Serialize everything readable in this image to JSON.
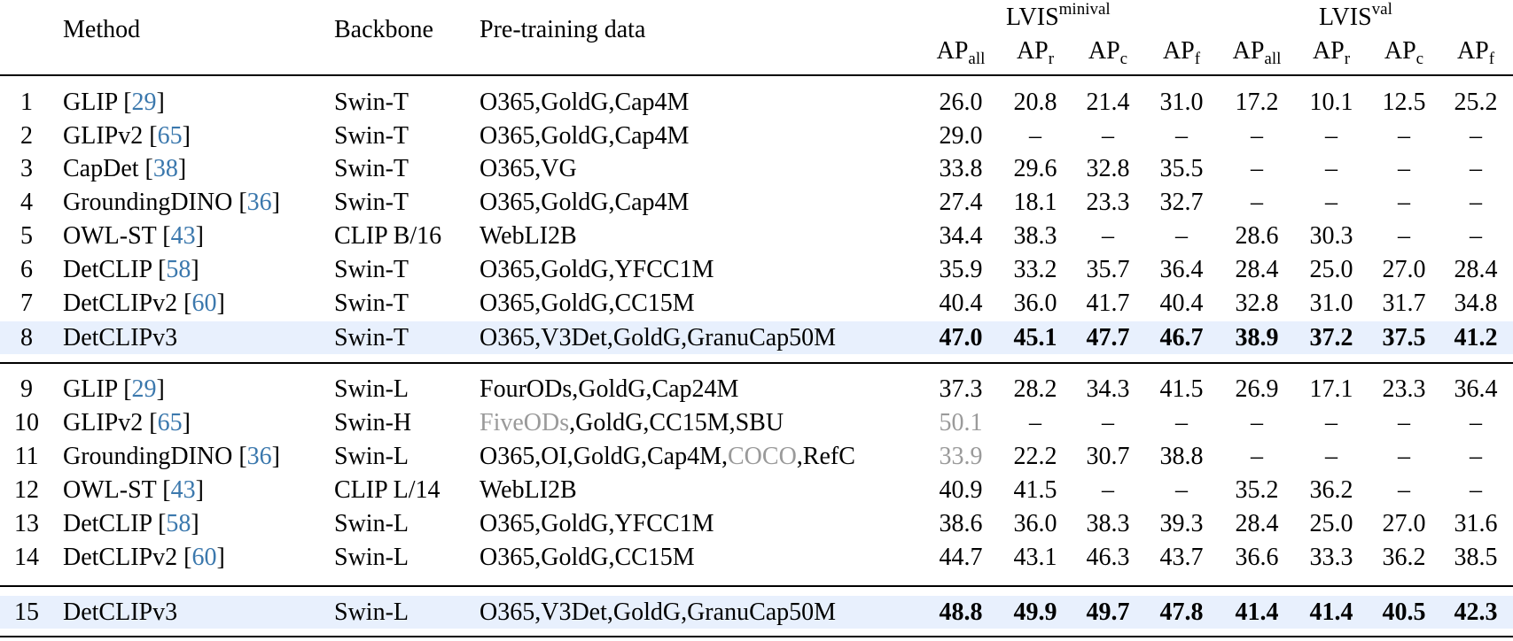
{
  "header": {
    "method": "Method",
    "backbone": "Backbone",
    "pretraining": "Pre-training data",
    "groups": [
      {
        "base": "LVIS",
        "sup": "minival"
      },
      {
        "base": "LVIS",
        "sup": "val"
      }
    ],
    "metrics": [
      {
        "base": "AP",
        "sub": "all"
      },
      {
        "base": "AP",
        "sub": "r"
      },
      {
        "base": "AP",
        "sub": "c"
      },
      {
        "base": "AP",
        "sub": "f"
      },
      {
        "base": "AP",
        "sub": "all"
      },
      {
        "base": "AP",
        "sub": "r"
      },
      {
        "base": "AP",
        "sub": "c"
      },
      {
        "base": "AP",
        "sub": "f"
      }
    ]
  },
  "rows": [
    {
      "num": "1",
      "method": "GLIP",
      "cite": "29",
      "backbone": "Swin-T",
      "data": [
        {
          "t": "O365,GoldG,Cap4M"
        }
      ],
      "values": [
        "26.0",
        "20.8",
        "21.4",
        "31.0",
        "17.2",
        "10.1",
        "12.5",
        "25.2"
      ]
    },
    {
      "num": "2",
      "method": "GLIPv2",
      "cite": "65",
      "backbone": "Swin-T",
      "data": [
        {
          "t": "O365,GoldG,Cap4M"
        }
      ],
      "values": [
        "29.0",
        "–",
        "–",
        "–",
        "–",
        "–",
        "–",
        "–"
      ]
    },
    {
      "num": "3",
      "method": "CapDet",
      "cite": "38",
      "backbone": "Swin-T",
      "data": [
        {
          "t": "O365,VG"
        }
      ],
      "values": [
        "33.8",
        "29.6",
        "32.8",
        "35.5",
        "–",
        "–",
        "–",
        "–"
      ]
    },
    {
      "num": "4",
      "method": "GroundingDINO",
      "cite": "36",
      "backbone": "Swin-T",
      "data": [
        {
          "t": "O365,GoldG,Cap4M"
        }
      ],
      "values": [
        "27.4",
        "18.1",
        "23.3",
        "32.7",
        "–",
        "–",
        "–",
        "–"
      ]
    },
    {
      "num": "5",
      "method": "OWL-ST",
      "cite": "43",
      "backbone": "CLIP B/16",
      "data": [
        {
          "t": "WebLI2B"
        }
      ],
      "values": [
        "34.4",
        "38.3",
        "–",
        "–",
        "28.6",
        "30.3",
        "–",
        "–"
      ]
    },
    {
      "num": "6",
      "method": "DetCLIP",
      "cite": "58",
      "backbone": "Swin-T",
      "data": [
        {
          "t": "O365,GoldG,YFCC1M"
        }
      ],
      "values": [
        "35.9",
        "33.2",
        "35.7",
        "36.4",
        "28.4",
        "25.0",
        "27.0",
        "28.4"
      ]
    },
    {
      "num": "7",
      "method": "DetCLIPv2",
      "cite": "60",
      "backbone": "Swin-T",
      "data": [
        {
          "t": "O365,GoldG,CC15M"
        }
      ],
      "values": [
        "40.4",
        "36.0",
        "41.7",
        "40.4",
        "32.8",
        "31.0",
        "31.7",
        "34.8"
      ]
    },
    {
      "num": "8",
      "method": "DetCLIPv3",
      "cite": "",
      "backbone": "Swin-T",
      "highlight": true,
      "data": [
        {
          "t": "O365,V3Det,GoldG,GranuCap50M"
        }
      ],
      "values": [
        "47.0",
        "45.1",
        "47.7",
        "46.7",
        "38.9",
        "37.2",
        "37.5",
        "41.2"
      ],
      "bold": true
    },
    {
      "num": "9",
      "method": "GLIP",
      "cite": "29",
      "backbone": "Swin-L",
      "data": [
        {
          "t": "FourODs,GoldG,Cap24M"
        }
      ],
      "values": [
        "37.3",
        "28.2",
        "34.3",
        "41.5",
        "26.9",
        "17.1",
        "23.3",
        "36.4"
      ]
    },
    {
      "num": "10",
      "method": "GLIPv2",
      "cite": "65",
      "backbone": "Swin-H",
      "data": [
        {
          "t": "FiveODs",
          "gray": true
        },
        {
          "t": ",GoldG,CC15M,SBU"
        }
      ],
      "values": [
        "50.1",
        "–",
        "–",
        "–",
        "–",
        "–",
        "–",
        "–"
      ],
      "gray_first": true
    },
    {
      "num": "11",
      "method": "GroundingDINO",
      "cite": "36",
      "backbone": "Swin-L",
      "data": [
        {
          "t": "O365,OI,GoldG,Cap4M,"
        },
        {
          "t": "COCO",
          "gray": true
        },
        {
          "t": ",RefC"
        }
      ],
      "values": [
        "33.9",
        "22.2",
        "30.7",
        "38.8",
        "–",
        "–",
        "–",
        "–"
      ],
      "gray_first": true
    },
    {
      "num": "12",
      "method": "OWL-ST",
      "cite": "43",
      "backbone": "CLIP L/14",
      "data": [
        {
          "t": "WebLI2B"
        }
      ],
      "values": [
        "40.9",
        "41.5",
        "–",
        "–",
        "35.2",
        "36.2",
        "–",
        "–"
      ]
    },
    {
      "num": "13",
      "method": "DetCLIP",
      "cite": "58",
      "backbone": "Swin-L",
      "data": [
        {
          "t": "O365,GoldG,YFCC1M"
        }
      ],
      "values": [
        "38.6",
        "36.0",
        "38.3",
        "39.3",
        "28.4",
        "25.0",
        "27.0",
        "31.6"
      ]
    },
    {
      "num": "14",
      "method": "DetCLIPv2",
      "cite": "60",
      "backbone": "Swin-L",
      "data": [
        {
          "t": "O365,GoldG,CC15M"
        }
      ],
      "values": [
        "44.7",
        "43.1",
        "46.3",
        "43.7",
        "36.6",
        "33.3",
        "36.2",
        "38.5"
      ]
    },
    {
      "num": "15",
      "method": "DetCLIPv3",
      "cite": "",
      "backbone": "Swin-L",
      "highlight": true,
      "data": [
        {
          "t": "O365,V3Det,GoldG,GranuCap50M"
        }
      ],
      "values": [
        "48.8",
        "49.9",
        "49.7",
        "47.8",
        "41.4",
        "41.4",
        "40.5",
        "42.3"
      ],
      "bold": true
    }
  ],
  "colors": {
    "highlight_row": "#e8f0fd",
    "citation": "#3b78ad",
    "muted": "#9a9a9a"
  }
}
